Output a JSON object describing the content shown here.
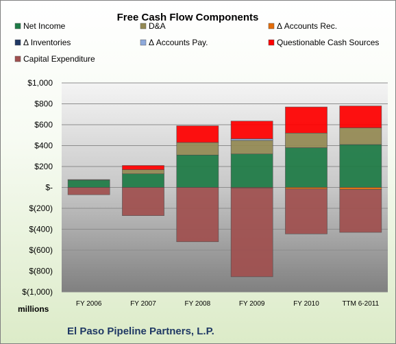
{
  "chart_data": {
    "type": "bar",
    "stacked": true,
    "title": "Free Cash Flow Components",
    "categories": [
      "FY 2006",
      "FY 2007",
      "FY 2008",
      "FY 2009",
      "FY 2010",
      "TTM 6-2011"
    ],
    "series": [
      {
        "name": "Net Income",
        "color": "#1e7b46",
        "values": [
          70,
          130,
          310,
          320,
          380,
          410
        ]
      },
      {
        "name": "D&A",
        "color": "#948a54",
        "values": [
          5,
          40,
          120,
          130,
          140,
          160
        ]
      },
      {
        "name": "Δ Accounts Rec.",
        "color": "#e46c0a",
        "values": [
          0,
          0,
          0,
          -5,
          -15,
          -20
        ]
      },
      {
        "name": "Δ Inventories",
        "color": "#1f3864",
        "values": [
          0,
          0,
          0,
          0,
          0,
          0
        ]
      },
      {
        "name": "Δ Accounts Pay.",
        "color": "#8eaadb",
        "values": [
          0,
          0,
          0,
          15,
          0,
          0
        ]
      },
      {
        "name": "Questionable Cash Sources",
        "color": "#ff0000",
        "values": [
          0,
          40,
          160,
          170,
          250,
          210
        ]
      },
      {
        "name": "Capital Expenditure",
        "color": "#a0504f",
        "values": [
          -70,
          -270,
          -520,
          -850,
          -430,
          -410
        ]
      }
    ],
    "ylim": [
      -1000,
      1000
    ],
    "yticks": [
      1000,
      800,
      600,
      400,
      200,
      0,
      -200,
      -400,
      -600,
      -800,
      -1000
    ],
    "ytick_labels": [
      "$1,000",
      "$800",
      "$600",
      "$400",
      "$200",
      "$-",
      "$(200)",
      "$(400)",
      "$(600)",
      "$(800)",
      "$(1,000)"
    ],
    "units_label": "millions",
    "grid": true,
    "legend_position": "top",
    "company": "El Paso Pipeline Partners, L.P."
  }
}
